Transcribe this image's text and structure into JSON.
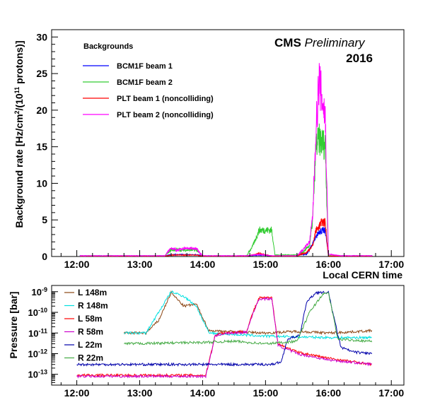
{
  "chart_data": [
    {
      "type": "line",
      "title": "",
      "annotation": {
        "label": "CMS",
        "italic": "Preliminary",
        "year": "2016"
      },
      "ylabel_pre": "Background rate [Hz/cm",
      "ylabel_sup1": "2",
      "ylabel_mid": "/(10",
      "ylabel_sup2": "11",
      "ylabel_post": " protons)]",
      "xlabel": "Local CERN time",
      "xlim": [
        11.6,
        17.2
      ],
      "ylim": [
        0,
        31
      ],
      "x_ticks": [
        12,
        13,
        14,
        15,
        16,
        17
      ],
      "x_tick_labels": [
        "12:00",
        "13:00",
        "14:00",
        "15:00",
        "16:00",
        "17:00"
      ],
      "y_ticks": [
        0,
        5,
        10,
        15,
        20,
        25,
        30
      ],
      "y_tick_labels": [
        "0",
        "5",
        "10",
        "15",
        "20",
        "25",
        "30"
      ],
      "legend_title": "Backgrounds",
      "legend_position": "top-left",
      "series": [
        {
          "name": "BCM1F beam 1",
          "color": "#0000ff",
          "x": [
            12.05,
            13.4,
            13.5,
            13.7,
            13.9,
            14.0,
            14.7,
            14.9,
            15.1,
            15.5,
            15.55,
            15.65,
            15.7,
            15.8,
            15.85,
            15.95,
            16.0,
            16.7
          ],
          "y": [
            0.1,
            0.1,
            0.25,
            0.25,
            0.25,
            0.1,
            0.1,
            0.2,
            0.1,
            0.1,
            0.3,
            0.3,
            1.0,
            2.5,
            3.5,
            3.5,
            0.1,
            0.1
          ]
        },
        {
          "name": "BCM1F beam 2",
          "color": "#33cc33",
          "x": [
            12.05,
            13.4,
            13.5,
            13.9,
            14.0,
            14.7,
            14.8,
            14.9,
            15.1,
            15.15,
            15.5,
            15.6,
            15.7,
            15.75,
            15.8,
            15.85,
            15.95,
            16.0,
            16.7
          ],
          "y": [
            0.1,
            0.1,
            0.9,
            0.9,
            0.1,
            0.1,
            1.5,
            3.6,
            3.6,
            0.2,
            0.2,
            0.6,
            1.5,
            5.0,
            15.0,
            16.0,
            15.2,
            0.1,
            0.1
          ]
        },
        {
          "name": "PLT beam 1 (noncolliding)",
          "color": "#ff0000",
          "x": [
            12.05,
            13.4,
            13.5,
            13.9,
            14.0,
            14.7,
            14.9,
            15.1,
            15.5,
            15.55,
            15.65,
            15.75,
            15.8,
            15.9,
            15.95,
            16.0,
            16.7
          ],
          "y": [
            0.05,
            0.05,
            0.2,
            0.2,
            0.05,
            0.05,
            0.4,
            0.05,
            0.05,
            0.3,
            0.5,
            1.5,
            3.5,
            4.7,
            4.6,
            0.05,
            0.05
          ]
        },
        {
          "name": "PLT beam 2 (noncolliding)",
          "color": "#ff00ff",
          "x": [
            12.05,
            13.4,
            13.5,
            13.6,
            13.7,
            13.9,
            14.0,
            14.7,
            14.9,
            15.1,
            15.5,
            15.6,
            15.7,
            15.75,
            15.8,
            15.85,
            15.95,
            16.0,
            16.2,
            16.7
          ],
          "y": [
            0.1,
            0.1,
            1.2,
            0.8,
            1.1,
            1.1,
            0.1,
            0.1,
            0.3,
            0.1,
            0.1,
            1.0,
            2.0,
            5.5,
            17.0,
            24.0,
            19.0,
            0.3,
            0.1,
            0.1
          ]
        }
      ]
    },
    {
      "type": "line",
      "title": "",
      "ylabel": "Pressure [bar]",
      "xlabel": "",
      "yscale": "log",
      "xlim": [
        11.6,
        17.2
      ],
      "ylim": [
        3e-14,
        2e-09
      ],
      "x_ticks": [
        12,
        13,
        14,
        15,
        16,
        17
      ],
      "x_tick_labels": [
        "12:00",
        "13:00",
        "14:00",
        "15:00",
        "16:00",
        "17:00"
      ],
      "y_ticks": [
        1e-13,
        1e-12,
        1e-11,
        1e-10,
        1e-09
      ],
      "y_tick_base": "10",
      "y_tick_exponents": [
        "-13",
        "-12",
        "-11",
        "-10",
        "-9"
      ],
      "legend_position": "top-left",
      "series": [
        {
          "name": "L 148m",
          "color": "#8b4513",
          "x": [
            12.75,
            13.1,
            13.3,
            13.5,
            13.7,
            13.9,
            14.1,
            15.0,
            15.5,
            16.0,
            16.3,
            16.7
          ],
          "y": [
            1e-11,
            1e-11,
            4e-11,
            9e-10,
            2e-10,
            2.5e-10,
            1.3e-11,
            1e-11,
            1.2e-11,
            1e-11,
            1.1e-11,
            1.3e-11
          ]
        },
        {
          "name": "R 148m",
          "color": "#00e0e0",
          "x": [
            12.75,
            13.1,
            13.3,
            13.5,
            13.7,
            13.9,
            14.1,
            15.0,
            16.0,
            16.7
          ],
          "y": [
            1e-11,
            1e-11,
            1e-10,
            1e-09,
            6e-10,
            2e-10,
            1e-11,
            7e-12,
            6e-12,
            6e-12
          ]
        },
        {
          "name": "L 58m",
          "color": "#ff0000",
          "x": [
            12.0,
            14.05,
            14.2,
            14.3,
            14.7,
            14.8,
            14.9,
            15.1,
            15.2,
            15.5,
            16.0,
            16.7
          ],
          "y": [
            9e-14,
            9e-14,
            8e-12,
            1e-11,
            1.2e-11,
            1e-10,
            5e-10,
            5e-10,
            3e-12,
            1.2e-12,
            6e-13,
            3e-13
          ]
        },
        {
          "name": "R 58m",
          "color": "#cc00cc",
          "x": [
            12.0,
            14.05,
            14.2,
            14.3,
            14.7,
            14.8,
            14.9,
            15.1,
            15.2,
            15.5,
            16.0,
            16.7
          ],
          "y": [
            8e-14,
            8e-14,
            7e-12,
            9e-12,
            1.1e-11,
            9e-11,
            4.5e-10,
            4.5e-10,
            2.5e-12,
            1e-12,
            5e-13,
            3e-13
          ]
        },
        {
          "name": "L 22m",
          "color": "#0000aa",
          "x": [
            12.0,
            15.1,
            15.25,
            15.35,
            15.55,
            15.65,
            15.8,
            16.0,
            16.15,
            16.2,
            16.4,
            16.7
          ],
          "y": [
            3e-13,
            3e-13,
            4e-13,
            5e-12,
            8e-12,
            3e-10,
            9e-10,
            9e-10,
            8e-12,
            2e-12,
            1.2e-12,
            1e-12
          ]
        },
        {
          "name": "R 22m",
          "color": "#44aa44",
          "x": [
            12.75,
            14.0,
            14.5,
            15.0,
            15.5,
            15.7,
            15.9,
            16.0,
            16.15,
            16.7
          ],
          "y": [
            3e-12,
            3.5e-12,
            4e-12,
            3e-12,
            4e-12,
            1e-10,
            7e-10,
            9e-10,
            5e-12,
            4e-12
          ]
        }
      ]
    }
  ]
}
